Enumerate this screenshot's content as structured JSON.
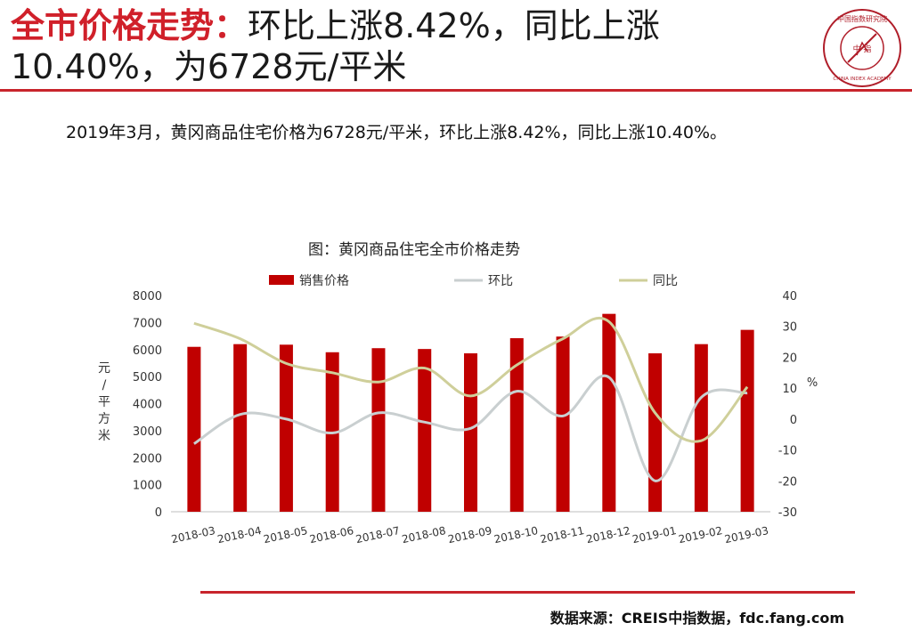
{
  "header": {
    "title_highlight": "全市价格走势：",
    "title_rest": "环比上涨8.42%，同比上涨10.40%，为6728元/平米"
  },
  "logo": {
    "text_top": "中国指数研究院",
    "text_bottom": "CHINA INDEX ACADEMY",
    "center_chars": "中 指"
  },
  "summary": "2019年3月，黄冈商品住宅价格为6728元/平米，环比上涨8.42%，同比上涨10.40%。",
  "footer": {
    "source": "数据来源：CREIS中指数据，fdc.fang.com"
  },
  "colors": {
    "accent": "#c8242c",
    "bar": "#c00000",
    "mom_line": "#c9cfd0",
    "yoy_line": "#cfcf9a"
  },
  "chart_data": {
    "type": "bar",
    "title": "图：黄冈商品住宅全市价格走势",
    "categories": [
      "2018-03",
      "2018-04",
      "2018-05",
      "2018-06",
      "2018-07",
      "2018-08",
      "2018-09",
      "2018-10",
      "2018-11",
      "2018-12",
      "2019-01",
      "2019-02",
      "2019-03"
    ],
    "series": [
      {
        "name": "销售价格",
        "type": "bar",
        "axis": "left",
        "values": [
          6100,
          6200,
          6180,
          5900,
          6050,
          6020,
          5860,
          6420,
          6480,
          7320,
          5860,
          6200,
          6728
        ]
      },
      {
        "name": "环比",
        "type": "line",
        "axis": "right",
        "values": [
          -8,
          1.5,
          0,
          -4.5,
          2,
          -1,
          -3,
          9,
          1,
          13.5,
          -20,
          7,
          8.42
        ]
      },
      {
        "name": "同比",
        "type": "line",
        "axis": "right",
        "values": [
          31,
          26,
          18,
          15,
          12,
          16.5,
          7.5,
          17.5,
          26,
          31.5,
          2,
          -7,
          10.4
        ]
      }
    ],
    "ylabel": "元/平方米",
    "ylabel_right": "%",
    "ylim": [
      0,
      8000
    ],
    "yticks": [
      0,
      1000,
      2000,
      3000,
      4000,
      5000,
      6000,
      7000,
      8000
    ],
    "ylim_right": [
      -30,
      40
    ],
    "yticks_right": [
      -30,
      -20,
      -10,
      0,
      10,
      20,
      30,
      40
    ],
    "legend_position": "top",
    "grid": false
  }
}
